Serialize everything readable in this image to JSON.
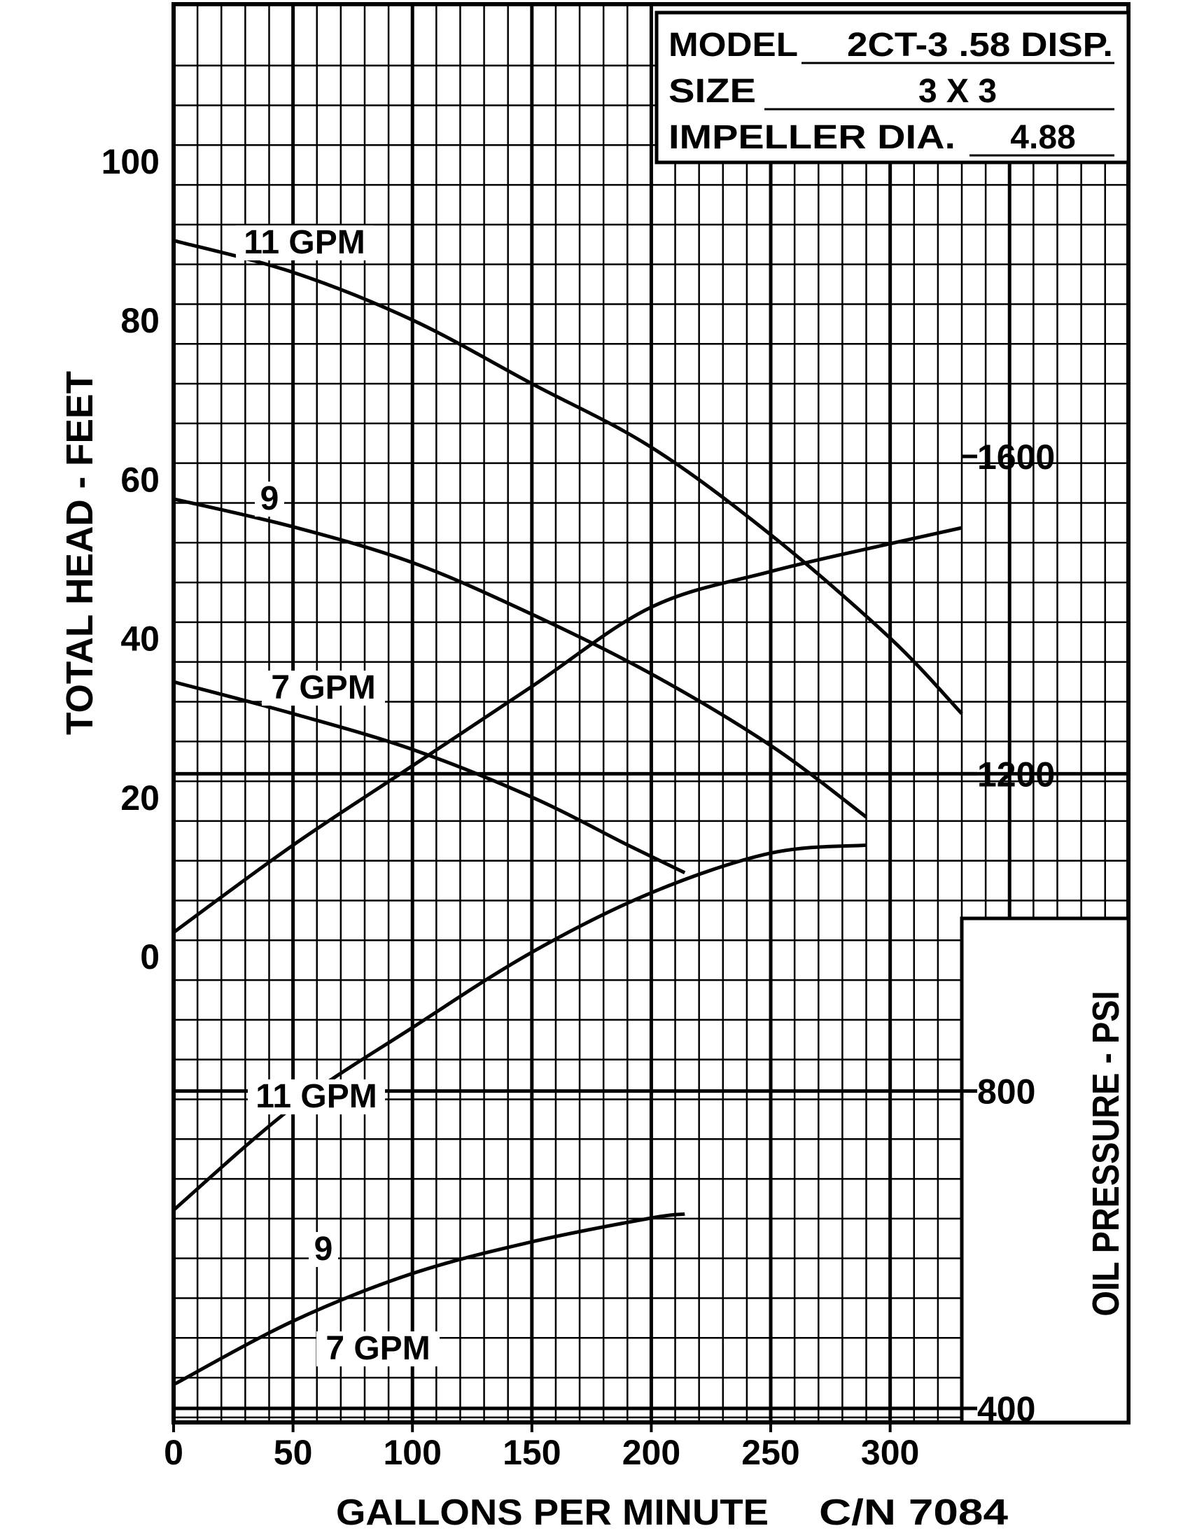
{
  "info_box": {
    "model_label": "MODEL",
    "model_value": "2CT-3  .58 DISP.",
    "size_label": "SIZE",
    "size_value": "3 X 3",
    "impeller_label": "IMPELLER DIA.",
    "impeller_value": "4.88"
  },
  "footer": {
    "catalog_number": "C/N 7084"
  },
  "chart_data": {
    "type": "line",
    "xlabel": "GALLONS PER MINUTE",
    "xlim": [
      0,
      400
    ],
    "x_ticks": [
      0,
      50,
      100,
      150,
      200,
      250,
      300
    ],
    "head_axis": {
      "label": "TOTAL HEAD - FEET",
      "ticks": [
        0,
        20,
        40,
        60,
        80,
        100
      ],
      "range": [
        0,
        120
      ]
    },
    "pressure_axis": {
      "label": "OIL PRESSURE - PSI",
      "ticks": [
        400,
        800,
        1200,
        1600
      ],
      "range": [
        400,
        1600
      ]
    },
    "head_series": [
      {
        "name": "11 GPM",
        "x": [
          0,
          50,
          100,
          150,
          200,
          250,
          300,
          330
        ],
        "y": [
          90,
          86,
          80,
          72,
          64,
          53,
          40,
          30.5
        ]
      },
      {
        "name": "9",
        "x": [
          0,
          50,
          100,
          150,
          200,
          250,
          290
        ],
        "y": [
          57.5,
          54,
          49.5,
          43,
          35.5,
          26.5,
          17.5
        ]
      },
      {
        "name": "7 GPM",
        "x": [
          0,
          50,
          100,
          150,
          190,
          214
        ],
        "y": [
          34.5,
          30.5,
          26,
          20,
          14,
          10.5
        ]
      }
    ],
    "pressure_series": [
      {
        "name": "11 GPM",
        "x": [
          0,
          50,
          100,
          150,
          200,
          250,
          300,
          330
        ],
        "y": [
          1000,
          1110,
          1210,
          1310,
          1410,
          1455,
          1490,
          1510
        ]
      },
      {
        "name": "9",
        "x": [
          0,
          50,
          100,
          150,
          200,
          250,
          290
        ],
        "y": [
          650,
          780,
          880,
          975,
          1050,
          1100,
          1110
        ]
      },
      {
        "name": "7 GPM",
        "x": [
          0,
          50,
          100,
          150,
          200,
          214
        ],
        "y": [
          430,
          510,
          570,
          610,
          640,
          645
        ]
      }
    ]
  }
}
